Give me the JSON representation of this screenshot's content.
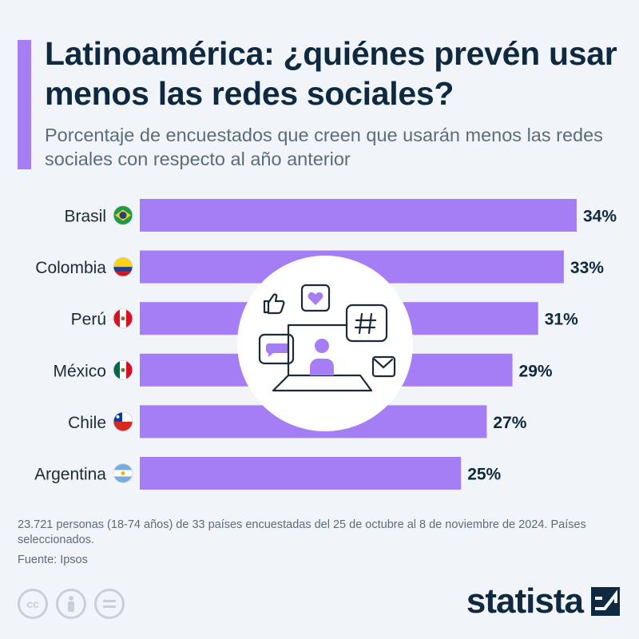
{
  "title": "Latinoamérica: ¿quiénes prevén usar menos las redes sociales?",
  "subtitle": "Porcentaje de encuestados que creen que usarán menos las redes sociales con respecto al año anterior",
  "chart_data": {
    "type": "bar",
    "orientation": "horizontal",
    "categories": [
      "Brasil",
      "Colombia",
      "Perú",
      "México",
      "Chile",
      "Argentina"
    ],
    "values": [
      34,
      33,
      31,
      29,
      27,
      25
    ],
    "value_suffix": "%",
    "bar_color": "#a57df5",
    "xlim": [
      0,
      34
    ]
  },
  "note": "23.721 personas (18-74 años) de 33 países encuestadas del 25 de octubre al 8 de noviembre de 2024. Países seleccionados.",
  "source": "Fuente: Ipsos",
  "license_icons": [
    "cc-icon",
    "by-icon",
    "nd-icon"
  ],
  "brand": "statista",
  "colors": {
    "accent": "#a57df5",
    "text_dark": "#0f2a40",
    "text_muted": "#5b6c7d",
    "background": "#f1f4f8"
  }
}
